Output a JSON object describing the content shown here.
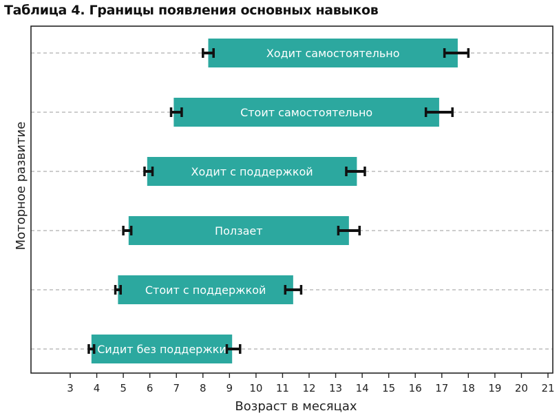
{
  "title": "Таблица 4. Границы появления основных навыков",
  "chart_data": {
    "type": "bar",
    "orientation": "horizontal-floating-range",
    "title": "Таблица 4. Границы появления основных навыков",
    "xlabel": "Возраст в месяцах",
    "ylabel": "Моторное развитие",
    "xlim": [
      2,
      21
    ],
    "x_ticks": [
      3,
      4,
      5,
      6,
      7,
      8,
      9,
      10,
      11,
      12,
      13,
      14,
      15,
      16,
      17,
      18,
      19,
      20,
      21
    ],
    "grid": "dashed horizontal lines at each category",
    "bar_color": "#2ca89f",
    "error_bar_color": "#111111",
    "categories": [
      "Ходит самостоятельно",
      "Стоит самостоятельно",
      "Ходит с поддержкой",
      "Ползает",
      "Стоит с поддержкой",
      "Сидит без поддержки"
    ],
    "bars": [
      {
        "label": "Ходит самостоятельно",
        "start": 8.2,
        "end": 17.6,
        "start_err": [
          8.0,
          8.4
        ],
        "end_err": [
          17.1,
          18.0
        ]
      },
      {
        "label": "Стоит самостоятельно",
        "start": 6.9,
        "end": 16.9,
        "start_err": [
          6.8,
          7.2
        ],
        "end_err": [
          16.4,
          17.4
        ]
      },
      {
        "label": "Ходит с поддержкой",
        "start": 5.9,
        "end": 13.8,
        "start_err": [
          5.8,
          6.1
        ],
        "end_err": [
          13.4,
          14.1
        ]
      },
      {
        "label": "Ползает",
        "start": 5.2,
        "end": 13.5,
        "start_err": [
          5.0,
          5.3
        ],
        "end_err": [
          13.1,
          13.9
        ]
      },
      {
        "label": "Стоит с поддержкой",
        "start": 4.8,
        "end": 11.4,
        "start_err": [
          4.7,
          4.9
        ],
        "end_err": [
          11.1,
          11.7
        ]
      },
      {
        "label": "Сидит без поддержки",
        "start": 3.8,
        "end": 9.1,
        "start_err": [
          3.7,
          3.9
        ],
        "end_err": [
          8.9,
          9.4
        ]
      }
    ]
  }
}
